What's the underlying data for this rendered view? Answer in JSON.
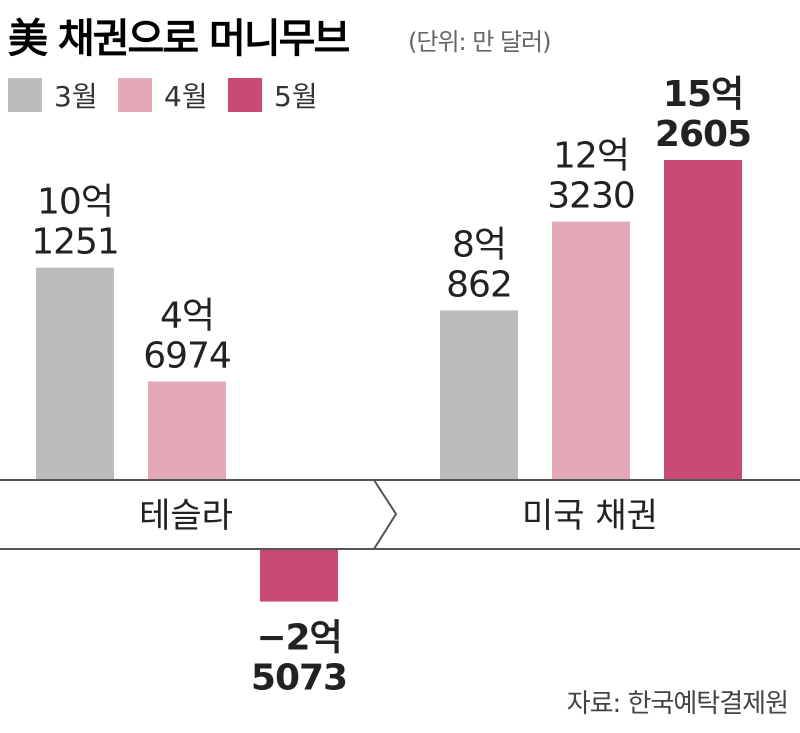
{
  "chart_data": {
    "type": "bar",
    "title": "美 채권으로 머니무브",
    "unit": "(단위: 만 달러)",
    "categories": [
      "테슬라",
      "미국 채권"
    ],
    "series": [
      {
        "name": "3월",
        "color": "#bcbcbc",
        "values": [
          101251,
          80862
        ],
        "labels": [
          "10억\n1251",
          "8억\n862"
        ]
      },
      {
        "name": "4월",
        "color": "#e3a9b6",
        "values": [
          46974,
          123230
        ],
        "labels": [
          "4억\n6974",
          "12억\n3230"
        ]
      },
      {
        "name": "5월",
        "color": "#c94a74",
        "values": [
          -25073,
          152605
        ],
        "labels": [
          "−2억\n5073",
          "15억\n2605"
        ]
      }
    ],
    "legend_position": "top-left",
    "grid": false,
    "source": "자료: 한국예탁결제원"
  }
}
